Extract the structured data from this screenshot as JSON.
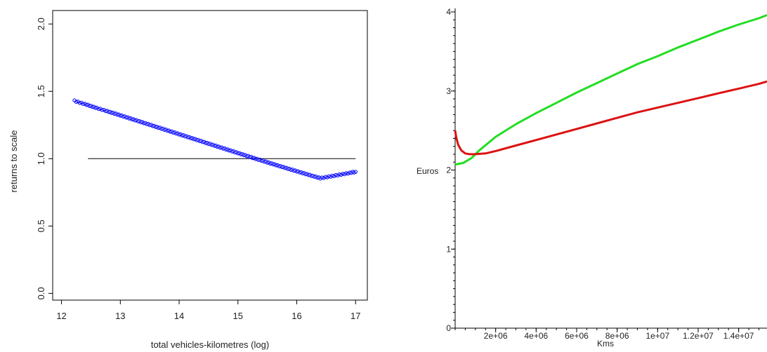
{
  "chart_data": [
    {
      "type": "scatter",
      "title": "",
      "xlabel": "total vehicles-kilometres (log)",
      "ylabel": "returns to scale",
      "xlim": [
        11.85,
        17.2
      ],
      "ylim": [
        -0.05,
        2.1
      ],
      "xticks": [
        {
          "value": 12,
          "label": "12"
        },
        {
          "value": 13,
          "label": "13"
        },
        {
          "value": 14,
          "label": "14"
        },
        {
          "value": 15,
          "label": "15"
        },
        {
          "value": 16,
          "label": "16"
        },
        {
          "value": 17,
          "label": "17"
        }
      ],
      "yticks": [
        {
          "value": 0.0,
          "label": "0.0"
        },
        {
          "value": 0.5,
          "label": "0.5"
        },
        {
          "value": 1.0,
          "label": "1.0"
        },
        {
          "value": 1.5,
          "label": "1.5"
        },
        {
          "value": 2.0,
          "label": "2.0"
        }
      ],
      "reference_line": {
        "y": 1.0,
        "x_from": 12.45,
        "x_to": 17.0,
        "color": "#000000"
      },
      "series": [
        {
          "color": "#0000ff",
          "marker": "open-circle",
          "x": [
            12.22,
            12.25,
            12.4,
            12.45,
            12.5,
            12.55,
            12.6,
            12.75,
            12.8,
            12.85,
            12.9,
            12.95,
            13.0,
            13.05,
            13.1,
            13.15,
            13.2,
            13.25,
            13.3,
            13.35,
            13.4,
            13.45,
            13.5,
            13.55,
            13.6,
            13.65,
            13.7,
            13.75,
            13.8,
            13.85,
            13.9,
            13.95,
            14.0,
            14.05,
            14.1,
            14.15,
            14.2,
            14.25,
            14.3,
            14.35,
            14.4,
            14.45,
            14.5,
            14.55,
            14.6,
            14.65,
            14.7,
            14.75,
            14.8,
            14.85,
            14.9,
            14.95,
            15.0,
            15.05,
            15.1,
            15.15,
            15.2,
            15.25,
            15.3,
            15.35,
            15.4,
            15.45,
            15.5,
            15.55,
            15.6,
            15.65,
            15.7,
            15.75,
            15.8,
            15.85,
            15.9,
            15.95,
            16.0,
            16.05,
            16.1,
            16.15,
            16.2,
            16.25,
            16.3,
            16.35,
            16.4,
            16.45,
            16.5,
            16.55,
            16.6,
            16.65,
            16.7,
            16.75,
            16.8,
            16.85,
            16.9,
            16.95,
            17.0
          ],
          "y": [
            1.43,
            1.425,
            1.405,
            1.398,
            1.39,
            1.383,
            1.376,
            1.356,
            1.349,
            1.342,
            1.336,
            1.329,
            1.322,
            1.315,
            1.308,
            1.301,
            1.294,
            1.287,
            1.28,
            1.273,
            1.266,
            1.259,
            1.252,
            1.245,
            1.238,
            1.231,
            1.224,
            1.217,
            1.21,
            1.203,
            1.196,
            1.189,
            1.182,
            1.175,
            1.168,
            1.161,
            1.154,
            1.147,
            1.14,
            1.133,
            1.126,
            1.119,
            1.112,
            1.105,
            1.098,
            1.091,
            1.084,
            1.077,
            1.07,
            1.063,
            1.056,
            1.049,
            1.042,
            1.035,
            1.028,
            1.021,
            1.014,
            1.007,
            1.0,
            0.993,
            0.987,
            0.98,
            0.973,
            0.966,
            0.96,
            0.953,
            0.946,
            0.94,
            0.933,
            0.926,
            0.92,
            0.913,
            0.907,
            0.9,
            0.894,
            0.887,
            0.881,
            0.874,
            0.868,
            0.862,
            0.855,
            0.849,
            0.843,
            0.836,
            0.83,
            0.824,
            0.818,
            0.812,
            0.806,
            0.8,
            0.894,
            0.9,
            0.9
          ]
        }
      ]
    },
    {
      "type": "line",
      "title": "",
      "xlabel": "Kms",
      "ylabel": "Euros",
      "xlim": [
        0,
        15400000
      ],
      "ylim": [
        0,
        4
      ],
      "xticks": [
        {
          "value": 2000000,
          "label": "2e+06"
        },
        {
          "value": 4000000,
          "label": "4e+06"
        },
        {
          "value": 6000000,
          "label": "6e+06"
        },
        {
          "value": 8000000,
          "label": "8e+06"
        },
        {
          "value": 10000000,
          "label": "1e+07"
        },
        {
          "value": 12000000,
          "label": "1.2e+07"
        },
        {
          "value": 14000000,
          "label": "1.4e+07"
        }
      ],
      "yticks": [
        {
          "value": 0,
          "label": "0"
        },
        {
          "value": 1,
          "label": "1"
        },
        {
          "value": 2,
          "label": "2"
        },
        {
          "value": 3,
          "label": "3"
        },
        {
          "value": 4,
          "label": "4"
        }
      ],
      "series": [
        {
          "color": "#22dd22",
          "x": [
            0,
            400000,
            800000,
            1200000,
            2000000,
            3000000,
            4000000,
            5000000,
            6000000,
            7000000,
            8000000,
            9000000,
            10000000,
            11000000,
            12000000,
            13000000,
            14000000,
            15000000,
            15400000
          ],
          "y": [
            2.07,
            2.09,
            2.15,
            2.25,
            2.42,
            2.58,
            2.72,
            2.85,
            2.98,
            3.1,
            3.22,
            3.34,
            3.44,
            3.55,
            3.65,
            3.75,
            3.84,
            3.92,
            3.96
          ]
        },
        {
          "color": "#dd1111",
          "x": [
            0,
            50000,
            150000,
            300000,
            500000,
            700000,
            1000000,
            1500000,
            2000000,
            3000000,
            4000000,
            5000000,
            6000000,
            7000000,
            8000000,
            9000000,
            10000000,
            11000000,
            12000000,
            13000000,
            14000000,
            15000000,
            15400000
          ],
          "y": [
            2.5,
            2.42,
            2.32,
            2.25,
            2.21,
            2.2,
            2.2,
            2.21,
            2.24,
            2.31,
            2.38,
            2.45,
            2.52,
            2.59,
            2.66,
            2.73,
            2.79,
            2.85,
            2.91,
            2.97,
            3.03,
            3.09,
            3.12
          ]
        }
      ]
    }
  ]
}
